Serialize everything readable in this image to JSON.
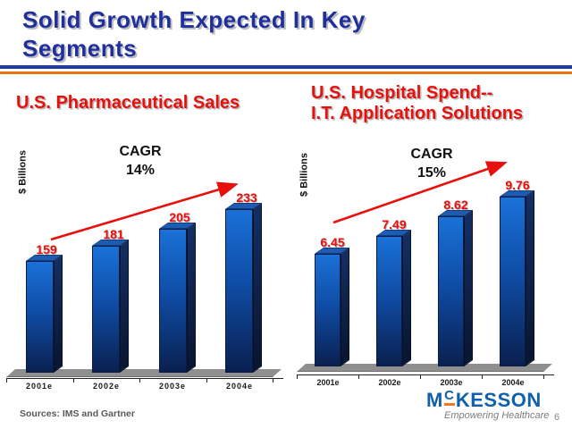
{
  "header": {
    "title_line1": "Solid Growth Expected In Key",
    "title_line2": "Segments"
  },
  "colors": {
    "title_blue": "#1f2f9e",
    "rule_blue": "#203ba6",
    "rule_orange": "#e8760e",
    "accent_red": "#e8100c",
    "bar_face_top": "#1a71d8",
    "bar_face_bottom": "#0a2050",
    "floor_gray": "#8f8f8f",
    "logo_blue": "#1060aa",
    "logo_orange": "#ef7622",
    "sources_gray": "#595959"
  },
  "chart_data": [
    {
      "type": "bar",
      "title_lines": [
        "U.S. Pharmaceutical Sales"
      ],
      "ylabel": "$ Billions",
      "cagr_label": "CAGR",
      "cagr_value": "14%",
      "categories": [
        "2001e",
        "2002e",
        "2003e",
        "2004e"
      ],
      "values": [
        159,
        181,
        205,
        233
      ],
      "value_labels": [
        "159",
        "181",
        "205",
        "233"
      ],
      "trend_arrow": "up",
      "legend": "none",
      "grid": "off"
    },
    {
      "type": "bar",
      "title_lines": [
        "U.S. Hospital Spend--",
        "I.T. Application Solutions"
      ],
      "ylabel": "$ Billions",
      "cagr_label": "CAGR",
      "cagr_value": "15%",
      "categories": [
        "2001e",
        "2002e",
        "2003e",
        "2004e"
      ],
      "values": [
        6.45,
        7.49,
        8.62,
        9.76
      ],
      "value_labels": [
        "6.45",
        "7.49",
        "8.62",
        "9.76"
      ],
      "trend_arrow": "up",
      "legend": "none",
      "grid": "off"
    }
  ],
  "footer": {
    "sources": "Sources:  IMS and Gartner",
    "page_number": "6",
    "logo": {
      "name": "McKesson",
      "wordmark_m": "M",
      "wordmark_c": "C",
      "wordmark_rest": "KESSON",
      "tagline": "Empowering Healthcare"
    }
  }
}
